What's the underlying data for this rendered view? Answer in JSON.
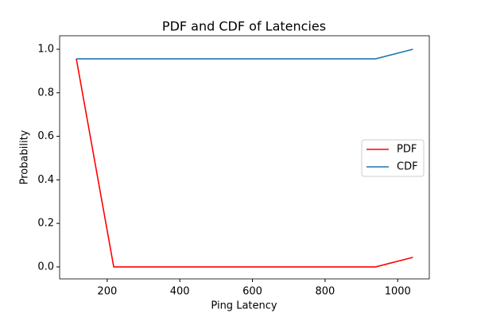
{
  "chart_data": {
    "type": "line",
    "title": "PDF and CDF of Latencies",
    "x_label": "Ping Latency",
    "y_label": "Probability",
    "x": [
      115,
      218,
      321,
      424,
      527,
      630,
      733,
      836,
      939,
      1042
    ],
    "series": [
      {
        "name": "PDF",
        "color": "#ff0000",
        "values": [
          0.956,
          0,
          0,
          0,
          0,
          0,
          0,
          0,
          0,
          0.044
        ]
      },
      {
        "name": "CDF",
        "color": "#1f77b4",
        "values": [
          0.956,
          0.956,
          0.956,
          0.956,
          0.956,
          0.956,
          0.956,
          0.956,
          0.956,
          1.0
        ]
      }
    ],
    "xlim": [
      69,
      1087
    ],
    "xticks": [
      200,
      400,
      600,
      800,
      1000
    ],
    "ylim": [
      -0.055,
      1.062
    ],
    "yticks": [
      {
        "value": 0,
        "label": "0.0"
      },
      0.2,
      0.4,
      0.6,
      0.8,
      {
        "value": 1,
        "label": "1.0"
      }
    ],
    "legend": "center right"
  }
}
